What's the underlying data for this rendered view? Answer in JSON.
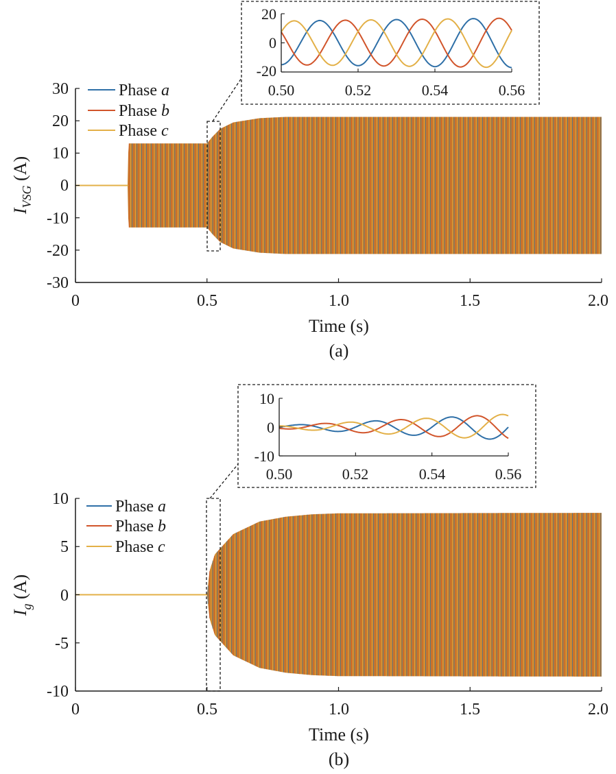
{
  "colors": {
    "phase_a": "#2e6fa7",
    "phase_b": "#d1542a",
    "phase_c": "#e3b047",
    "fill": "#c97e2a"
  },
  "chart_data": [
    {
      "type": "line",
      "panel": "a",
      "caption": "(a)",
      "xlabel": "Time (s)",
      "ylabel": {
        "main": "I",
        "sub": "VSG",
        "unit": " (A)"
      },
      "xlim": [
        0,
        2.0
      ],
      "ylim": [
        -30,
        30
      ],
      "xtick_labels": [
        "0",
        "0.5",
        "1.0",
        "1.5",
        "2.0"
      ],
      "ytick_labels": [
        "30",
        "20",
        "10",
        "0",
        "-10",
        "-20",
        "-30"
      ],
      "legend": [
        {
          "prefix": "Phase ",
          "phase": "a"
        },
        {
          "prefix": "Phase ",
          "phase": "b"
        },
        {
          "prefix": "Phase ",
          "phase": "c"
        }
      ],
      "envelope": [
        {
          "t": 0.0,
          "amp": 0
        },
        {
          "t": 0.2,
          "amp": 0
        },
        {
          "t": 0.201,
          "amp": 13
        },
        {
          "t": 0.5,
          "amp": 13
        },
        {
          "t": 0.52,
          "amp": 15
        },
        {
          "t": 0.55,
          "amp": 17.5
        },
        {
          "t": 0.6,
          "amp": 19.5
        },
        {
          "t": 0.7,
          "amp": 20.8
        },
        {
          "t": 0.8,
          "amp": 21.2
        },
        {
          "t": 2.0,
          "amp": 21.2
        }
      ],
      "zoom_region": {
        "x": [
          0.5,
          0.55
        ],
        "y": [
          -20,
          20
        ]
      },
      "inset": {
        "xlim": [
          0.5,
          0.56
        ],
        "ylim": [
          -20,
          20
        ],
        "xtick_labels": [
          "0.50",
          "0.52",
          "0.54",
          "0.56"
        ],
        "ytick_labels": [
          "20",
          "0",
          "-20"
        ],
        "frequency_hz": 50,
        "series": [
          {
            "name": "Phase a",
            "amp_start": 15,
            "amp_end": 17,
            "phase_deg": -90
          },
          {
            "name": "Phase b",
            "amp_start": 15,
            "amp_end": 17,
            "phase_deg": -210
          },
          {
            "name": "Phase c",
            "amp_start": 15,
            "amp_end": 17,
            "phase_deg": 30
          }
        ]
      }
    },
    {
      "type": "line",
      "panel": "b",
      "caption": "(b)",
      "xlabel": "Time (s)",
      "ylabel": {
        "main": "I",
        "sub": "g",
        "unit": " (A)"
      },
      "xlim": [
        0,
        2.0
      ],
      "ylim": [
        -10,
        10
      ],
      "xtick_labels": [
        "0",
        "0.5",
        "1.0",
        "1.5",
        "2.0"
      ],
      "ytick_labels": [
        "10",
        "5",
        "0",
        "-5",
        "-10"
      ],
      "legend": [
        {
          "prefix": "Phase ",
          "phase": "a"
        },
        {
          "prefix": "Phase ",
          "phase": "b"
        },
        {
          "prefix": "Phase ",
          "phase": "c"
        }
      ],
      "envelope": [
        {
          "t": 0.0,
          "amp": 0
        },
        {
          "t": 0.5,
          "amp": 0
        },
        {
          "t": 0.51,
          "amp": 2.5
        },
        {
          "t": 0.53,
          "amp": 4.2
        },
        {
          "t": 0.55,
          "amp": 4.8
        },
        {
          "t": 0.6,
          "amp": 6.3
        },
        {
          "t": 0.7,
          "amp": 7.6
        },
        {
          "t": 0.8,
          "amp": 8.1
        },
        {
          "t": 0.9,
          "amp": 8.35
        },
        {
          "t": 1.0,
          "amp": 8.45
        },
        {
          "t": 2.0,
          "amp": 8.5
        }
      ],
      "zoom_region": {
        "x": [
          0.5,
          0.55
        ],
        "y": [
          -10,
          10
        ]
      },
      "inset": {
        "xlim": [
          0.5,
          0.56
        ],
        "ylim": [
          -10,
          10
        ],
        "xtick_labels": [
          "0.50",
          "0.52",
          "0.54",
          "0.56"
        ],
        "ytick_labels": [
          "10",
          "0",
          "-10"
        ],
        "frequency_hz": 50,
        "series": [
          {
            "name": "Phase a",
            "amp_start": 0.5,
            "amp_end": 4.5,
            "phase_deg": 0
          },
          {
            "name": "Phase b",
            "amp_start": 0.5,
            "amp_end": 4.5,
            "phase_deg": -120
          },
          {
            "name": "Phase c",
            "amp_start": 0.5,
            "amp_end": 4.5,
            "phase_deg": 120
          }
        ]
      }
    }
  ]
}
